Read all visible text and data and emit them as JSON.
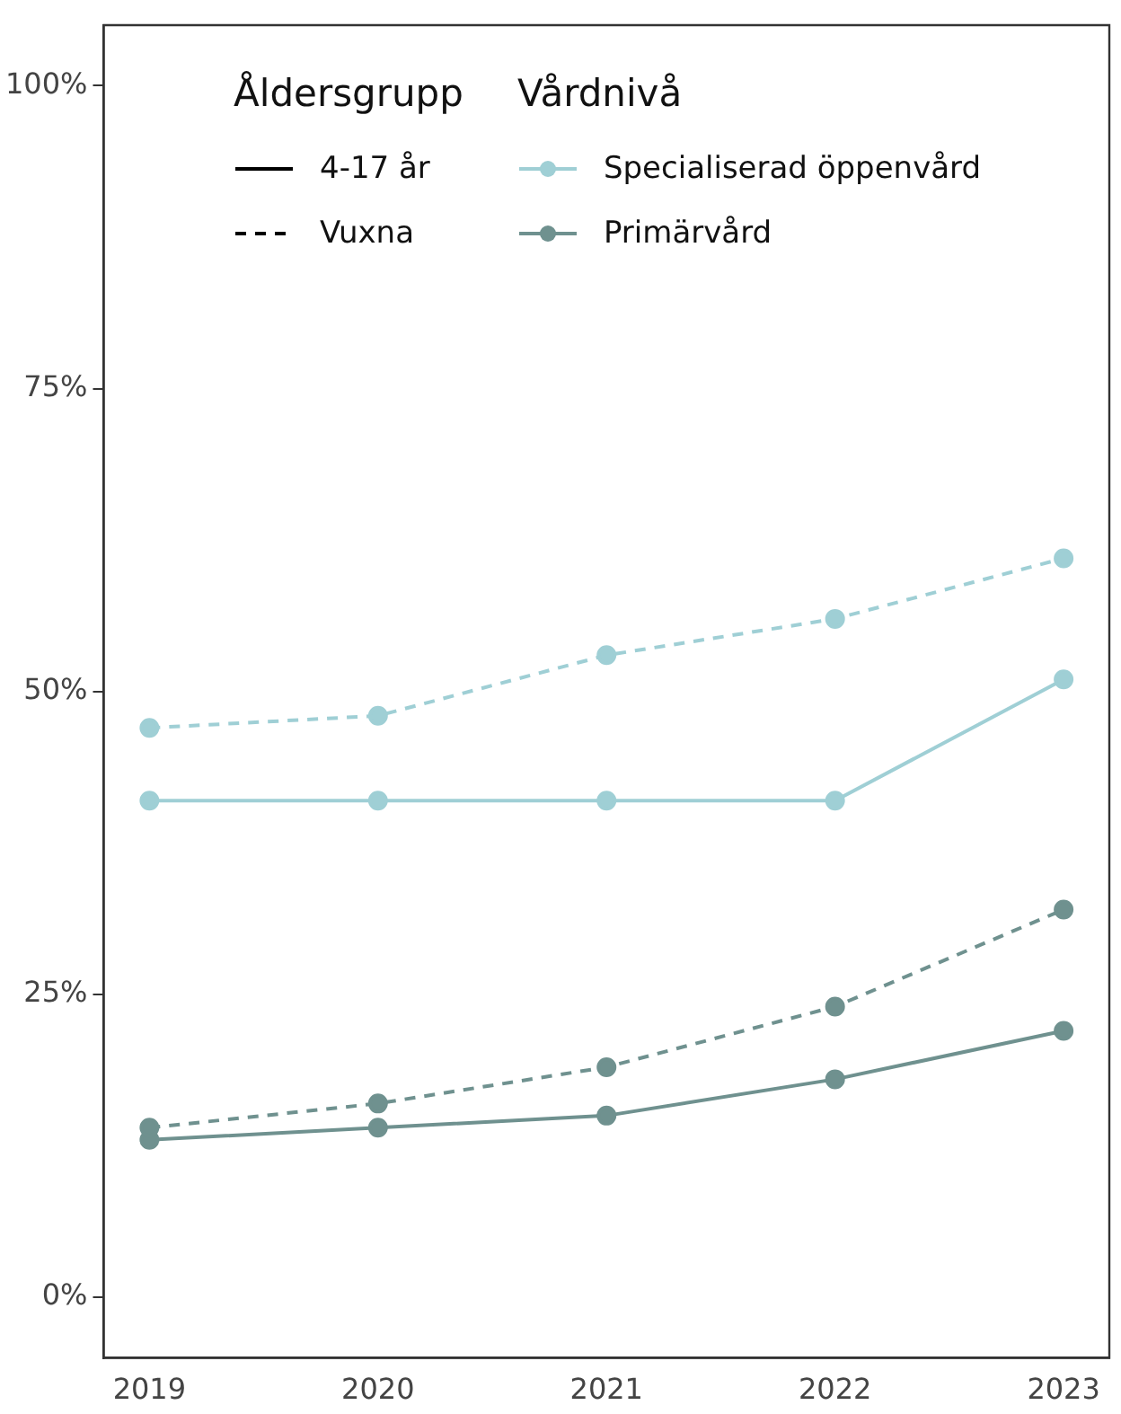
{
  "chart_data": {
    "type": "line",
    "x": [
      2019,
      2020,
      2021,
      2022,
      2023
    ],
    "series": [
      {
        "color": "#9fcfd5",
        "line_style": "dashed",
        "values": [
          47,
          48,
          53,
          56,
          61
        ]
      },
      {
        "name": "Specialiserad öppenvård",
        "color": "#9fcfd5",
        "line_style": "solid",
        "values": [
          41,
          41,
          41,
          41,
          51
        ]
      },
      {
        "color": "#6f918f",
        "line_style": "dashed",
        "values": [
          14,
          16,
          19,
          24,
          32
        ]
      },
      {
        "name": "Primärvård",
        "color": "#6f918f",
        "line_style": "solid",
        "values": [
          13,
          14,
          15,
          18,
          22
        ]
      }
    ],
    "xlim": [
      2018.8,
      2023.2
    ],
    "xticks": [
      2019,
      2020,
      2021,
      2022,
      2023
    ],
    "ylim": [
      -5,
      105
    ],
    "yticks": [
      {
        "value": 0,
        "label": "0%"
      },
      {
        "value": 25,
        "label": "25%"
      },
      {
        "value": 50,
        "label": "50%"
      },
      {
        "value": 75,
        "label": "75%"
      },
      {
        "value": 100,
        "label": "100%"
      }
    ],
    "grid": false,
    "marker": "circle",
    "legend": "top",
    "legend_title": "Vårdnivå",
    "annotations": [
      "Åldersgrupp",
      "4-17 år",
      "Vuxna"
    ]
  }
}
